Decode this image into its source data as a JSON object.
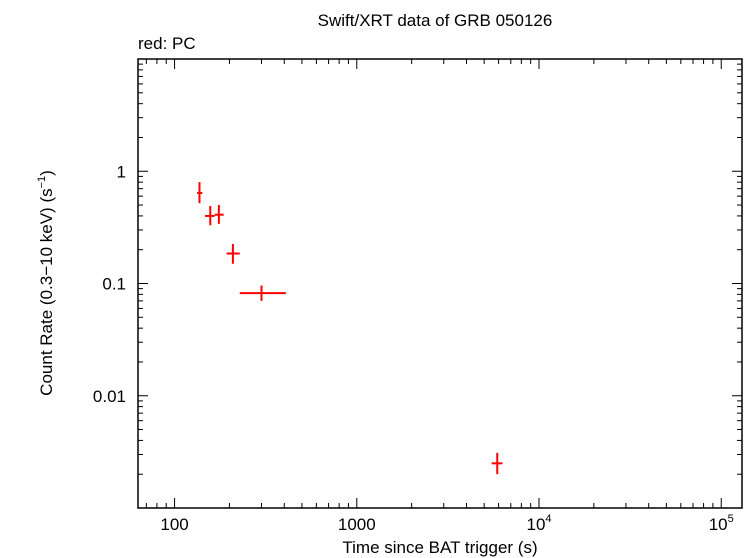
{
  "chart_data": {
    "type": "scatter",
    "title": "Swift/XRT data of GRB 050126",
    "subtitle": "red: PC",
    "xlabel": "Time since BAT trigger (s)",
    "ylabel_main": "Count Rate (0.3−10 keV) (s",
    "ylabel_sup": "−1",
    "ylabel_end": ")",
    "xscale": "log",
    "yscale": "log",
    "xlim": [
      63,
      130000
    ],
    "ylim": [
      0.001,
      10
    ],
    "grid": false,
    "x_ticks": [
      {
        "value": 100,
        "base": "100",
        "sup": ""
      },
      {
        "value": 1000,
        "base": "1000",
        "sup": ""
      },
      {
        "value": 10000,
        "base": "10",
        "sup": "4"
      },
      {
        "value": 100000,
        "base": "10",
        "sup": "5"
      }
    ],
    "y_ticks": [
      {
        "value": 1,
        "label": "1"
      },
      {
        "value": 0.1,
        "label": "0.1"
      },
      {
        "value": 0.01,
        "label": "0.01"
      }
    ],
    "series": [
      {
        "color": "#ff0000",
        "points": [
          {
            "x": 137,
            "y": 0.64,
            "xlo": 133,
            "xhi": 142,
            "ylo": 0.52,
            "yhi": 0.8
          },
          {
            "x": 157,
            "y": 0.4,
            "xlo": 147,
            "xhi": 166,
            "ylo": 0.33,
            "yhi": 0.49
          },
          {
            "x": 175,
            "y": 0.41,
            "xlo": 166,
            "xhi": 186,
            "ylo": 0.34,
            "yhi": 0.5
          },
          {
            "x": 209,
            "y": 0.185,
            "xlo": 193,
            "xhi": 228,
            "ylo": 0.15,
            "yhi": 0.225
          },
          {
            "x": 300,
            "y": 0.082,
            "xlo": 228,
            "xhi": 408,
            "ylo": 0.07,
            "yhi": 0.096
          },
          {
            "x": 5900,
            "y": 0.0025,
            "xlo": 5500,
            "xhi": 6300,
            "ylo": 0.002,
            "yhi": 0.0031
          }
        ]
      }
    ]
  }
}
